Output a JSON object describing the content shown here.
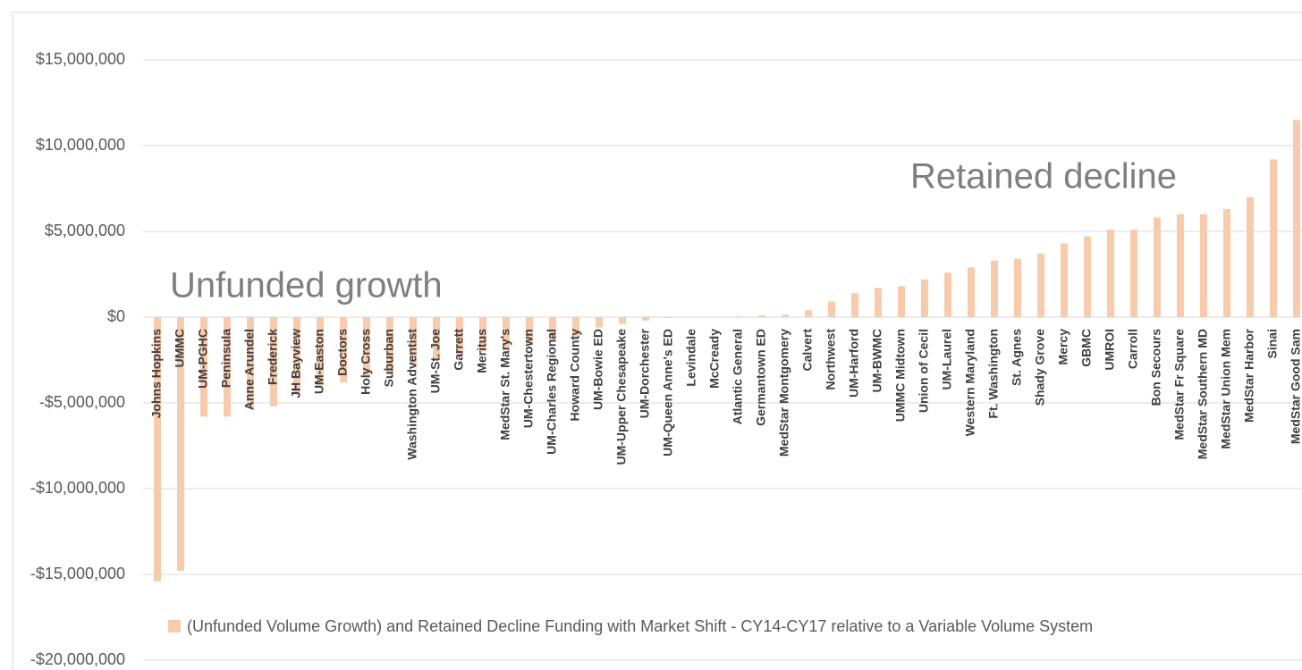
{
  "chart_data": {
    "type": "bar",
    "categories": [
      "Johns Hopkins",
      "UMMC",
      "UM-PGHC",
      "Peninsula",
      "Anne Arundel",
      "Frederick",
      "JH Bayview",
      "UM-Easton",
      "Doctors",
      "Holy Cross",
      "Suburban",
      "Washington Adventist",
      "UM-St. Joe",
      "Garrett",
      "Meritus",
      "MedStar St. Mary's",
      "UM-Chestertown",
      "UM-Charles Regional",
      "Howard County",
      "UM-Bowie ED",
      "UM-Upper Chesapeake",
      "UM-Dorchester",
      "UM-Queen Anne's ED",
      "Levindale",
      "McCready",
      "Atlantic General",
      "Germantown ED",
      "MedStar Montgomery",
      "Calvert",
      "Northwest",
      "UM-Harford",
      "UM-BWMC",
      "UMMC Midtown",
      "Union of Cecil",
      "UM-Laurel",
      "Western Maryland",
      "Ft. Washington",
      "St. Agnes",
      "Shady Grove",
      "Mercy",
      "GBMC",
      "UMROI",
      "Carroll",
      "Bon Secours",
      "MedStar Fr Square",
      "MedStar Southern MD",
      "MedStar Union Mem",
      "MedStar Harbor",
      "Sinai",
      "MedStar Good Sam"
    ],
    "series": [
      {
        "name": "(Unfunded Volume Growth) and Retained Decline Funding with Market Shift - CY14-CY17 relative to a Variable Volume System",
        "color": "#f8cbad",
        "values": [
          -15400000,
          -14800000,
          -5800000,
          -5800000,
          -5300000,
          -5200000,
          -4500000,
          -4000000,
          -3800000,
          -3500000,
          -3300000,
          -2800000,
          -2500000,
          -2200000,
          -2000000,
          -1800000,
          -1600000,
          -1400000,
          -1200000,
          -600000,
          -400000,
          -200000,
          -50000,
          0,
          0,
          50000,
          100000,
          150000,
          400000,
          900000,
          1400000,
          1700000,
          1800000,
          2200000,
          2600000,
          2900000,
          3300000,
          3400000,
          3700000,
          4300000,
          4700000,
          5100000,
          5100000,
          5800000,
          6000000,
          6000000,
          6300000,
          7000000,
          9200000,
          11500000
        ]
      }
    ],
    "ylim": [
      -20000000,
      17000000
    ],
    "yticks": [
      {
        "value": -20000000,
        "label": "-$20,000,000"
      },
      {
        "value": -15000000,
        "label": "-$15,000,000"
      },
      {
        "value": -10000000,
        "label": "-$10,000,000"
      },
      {
        "value": -5000000,
        "label": "-$5,000,000"
      },
      {
        "value": 0,
        "label": "$0"
      },
      {
        "value": 5000000,
        "label": "$5,000,000"
      },
      {
        "value": 10000000,
        "label": "$10,000,000"
      },
      {
        "value": 15000000,
        "label": "$15,000,000"
      }
    ],
    "grid": true,
    "annotations": [
      "Unfunded growth",
      "Retained decline"
    ],
    "legend": "bottom"
  }
}
